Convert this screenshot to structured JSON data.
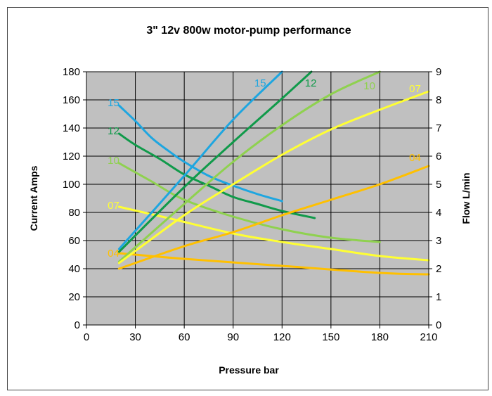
{
  "chart_data": {
    "type": "line",
    "title": "3\" 12v 800w motor-pump performance",
    "xlabel": "Pressure bar",
    "ylabel": "Current Amps",
    "y2label": "Flow L/min",
    "xlim": [
      0,
      210
    ],
    "ylim": [
      0,
      180
    ],
    "y2lim": [
      0,
      9
    ],
    "xticks": [
      0,
      30,
      60,
      90,
      120,
      150,
      180,
      210
    ],
    "yticks": [
      0,
      20,
      40,
      60,
      80,
      100,
      120,
      140,
      160,
      180
    ],
    "y2ticks": [
      0,
      1,
      2,
      3,
      4,
      5,
      6,
      7,
      8,
      9
    ],
    "grid": true,
    "background": "#c0c0c0",
    "series": [
      {
        "name": "15",
        "color": "#1ea6e0",
        "axis": "left",
        "points": [
          [
            20,
            156
          ],
          [
            30,
            145
          ],
          [
            40,
            133
          ],
          [
            50,
            124
          ],
          [
            60,
            116
          ],
          [
            75,
            106
          ],
          [
            90,
            99
          ],
          [
            105,
            93
          ],
          [
            120,
            88
          ]
        ],
        "label": {
          "text": "15",
          "x": 13,
          "y": 158
        }
      },
      {
        "name": "12",
        "color": "#109a4a",
        "axis": "left",
        "points": [
          [
            20,
            136
          ],
          [
            30,
            128
          ],
          [
            45,
            118
          ],
          [
            60,
            107
          ],
          [
            75,
            99
          ],
          [
            90,
            91
          ],
          [
            105,
            86
          ],
          [
            120,
            81
          ],
          [
            140,
            76
          ]
        ],
        "label": {
          "text": "12",
          "x": 13,
          "y": 138
        }
      },
      {
        "name": "10",
        "color": "#8fd14f",
        "axis": "left",
        "points": [
          [
            20,
            115
          ],
          [
            40,
            102
          ],
          [
            60,
            89
          ],
          [
            90,
            77
          ],
          [
            120,
            68
          ],
          [
            150,
            62
          ],
          [
            180,
            59
          ]
        ],
        "label": {
          "text": "10",
          "x": 13,
          "y": 117
        }
      },
      {
        "name": "07",
        "color": "#ffff33",
        "axis": "left",
        "points": [
          [
            20,
            84
          ],
          [
            50,
            76
          ],
          [
            90,
            65
          ],
          [
            120,
            59
          ],
          [
            150,
            54
          ],
          [
            180,
            49
          ],
          [
            210,
            46
          ]
        ],
        "label": {
          "text": "07",
          "x": 13,
          "y": 85
        }
      },
      {
        "name": "04",
        "color": "#ffc000",
        "axis": "left",
        "points": [
          [
            20,
            51
          ],
          [
            60,
            47
          ],
          [
            120,
            42
          ],
          [
            180,
            37
          ],
          [
            210,
            36
          ]
        ],
        "label": {
          "text": "04",
          "x": 13,
          "y": 51
        }
      },
      {
        "name": "15",
        "color": "#1ea6e0",
        "axis": "right",
        "points": [
          [
            20,
            2.7
          ],
          [
            60,
            5.3
          ],
          [
            90,
            7.3
          ],
          [
            120,
            9.0
          ]
        ],
        "label": {
          "text": "15",
          "x": 103,
          "y": 8.6
        }
      },
      {
        "name": "12",
        "color": "#109a4a",
        "axis": "right",
        "points": [
          [
            20,
            2.6
          ],
          [
            60,
            4.9
          ],
          [
            90,
            6.5
          ],
          [
            120,
            8.05
          ],
          [
            138,
            9.0
          ]
        ],
        "label": {
          "text": "12",
          "x": 134,
          "y": 8.6
        }
      },
      {
        "name": "10",
        "color": "#8fd14f",
        "axis": "right",
        "points": [
          [
            20,
            2.25
          ],
          [
            60,
            4.3
          ],
          [
            90,
            5.8
          ],
          [
            120,
            7.1
          ],
          [
            150,
            8.2
          ],
          [
            180,
            9.0
          ]
        ],
        "label": {
          "text": "10",
          "x": 170,
          "y": 8.5
        }
      },
      {
        "name": "07",
        "color": "#ffff33",
        "axis": "right",
        "points": [
          [
            20,
            2.2
          ],
          [
            60,
            3.9
          ],
          [
            90,
            5.0
          ],
          [
            120,
            6.05
          ],
          [
            150,
            6.95
          ],
          [
            180,
            7.65
          ],
          [
            210,
            8.3
          ]
        ],
        "label": {
          "text": "07",
          "x": 198,
          "y": 8.4
        }
      },
      {
        "name": "04",
        "color": "#ffc000",
        "axis": "right",
        "points": [
          [
            20,
            2.0
          ],
          [
            60,
            2.8
          ],
          [
            90,
            3.3
          ],
          [
            120,
            3.9
          ],
          [
            150,
            4.45
          ],
          [
            180,
            5.0
          ],
          [
            210,
            5.65
          ]
        ],
        "label": {
          "text": "04",
          "x": 198,
          "y": 5.95
        }
      }
    ]
  }
}
